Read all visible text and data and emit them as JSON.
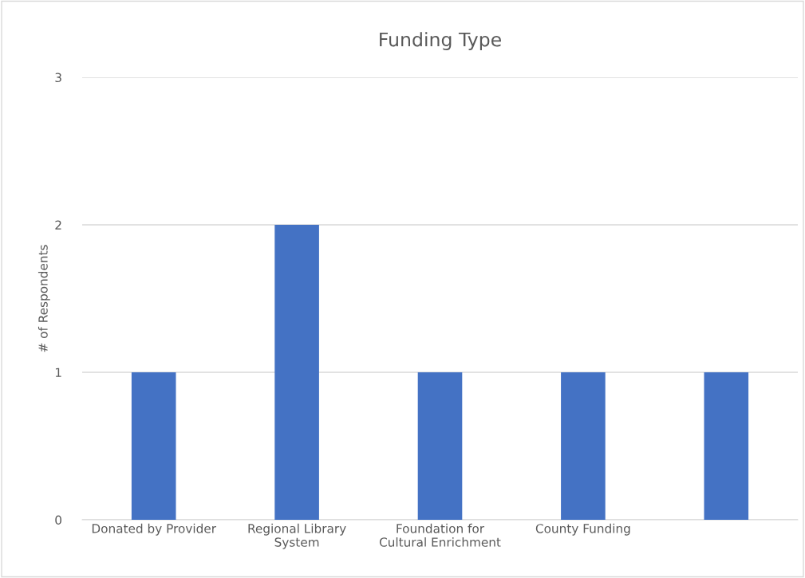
{
  "chart_data": {
    "type": "bar",
    "title": "Funding Type",
    "ylabel": "# of Respondents",
    "categories": [
      "Donated by Provider",
      "Regional Library\nSystem",
      "Foundation for\nCultural Enrichment",
      "County Funding",
      null
    ],
    "values": [
      1,
      2,
      1,
      1,
      1
    ],
    "color": "#4472c4",
    "ylim": [
      0,
      3
    ],
    "yticks": [
      0,
      1,
      2,
      3
    ],
    "grid": "y"
  }
}
